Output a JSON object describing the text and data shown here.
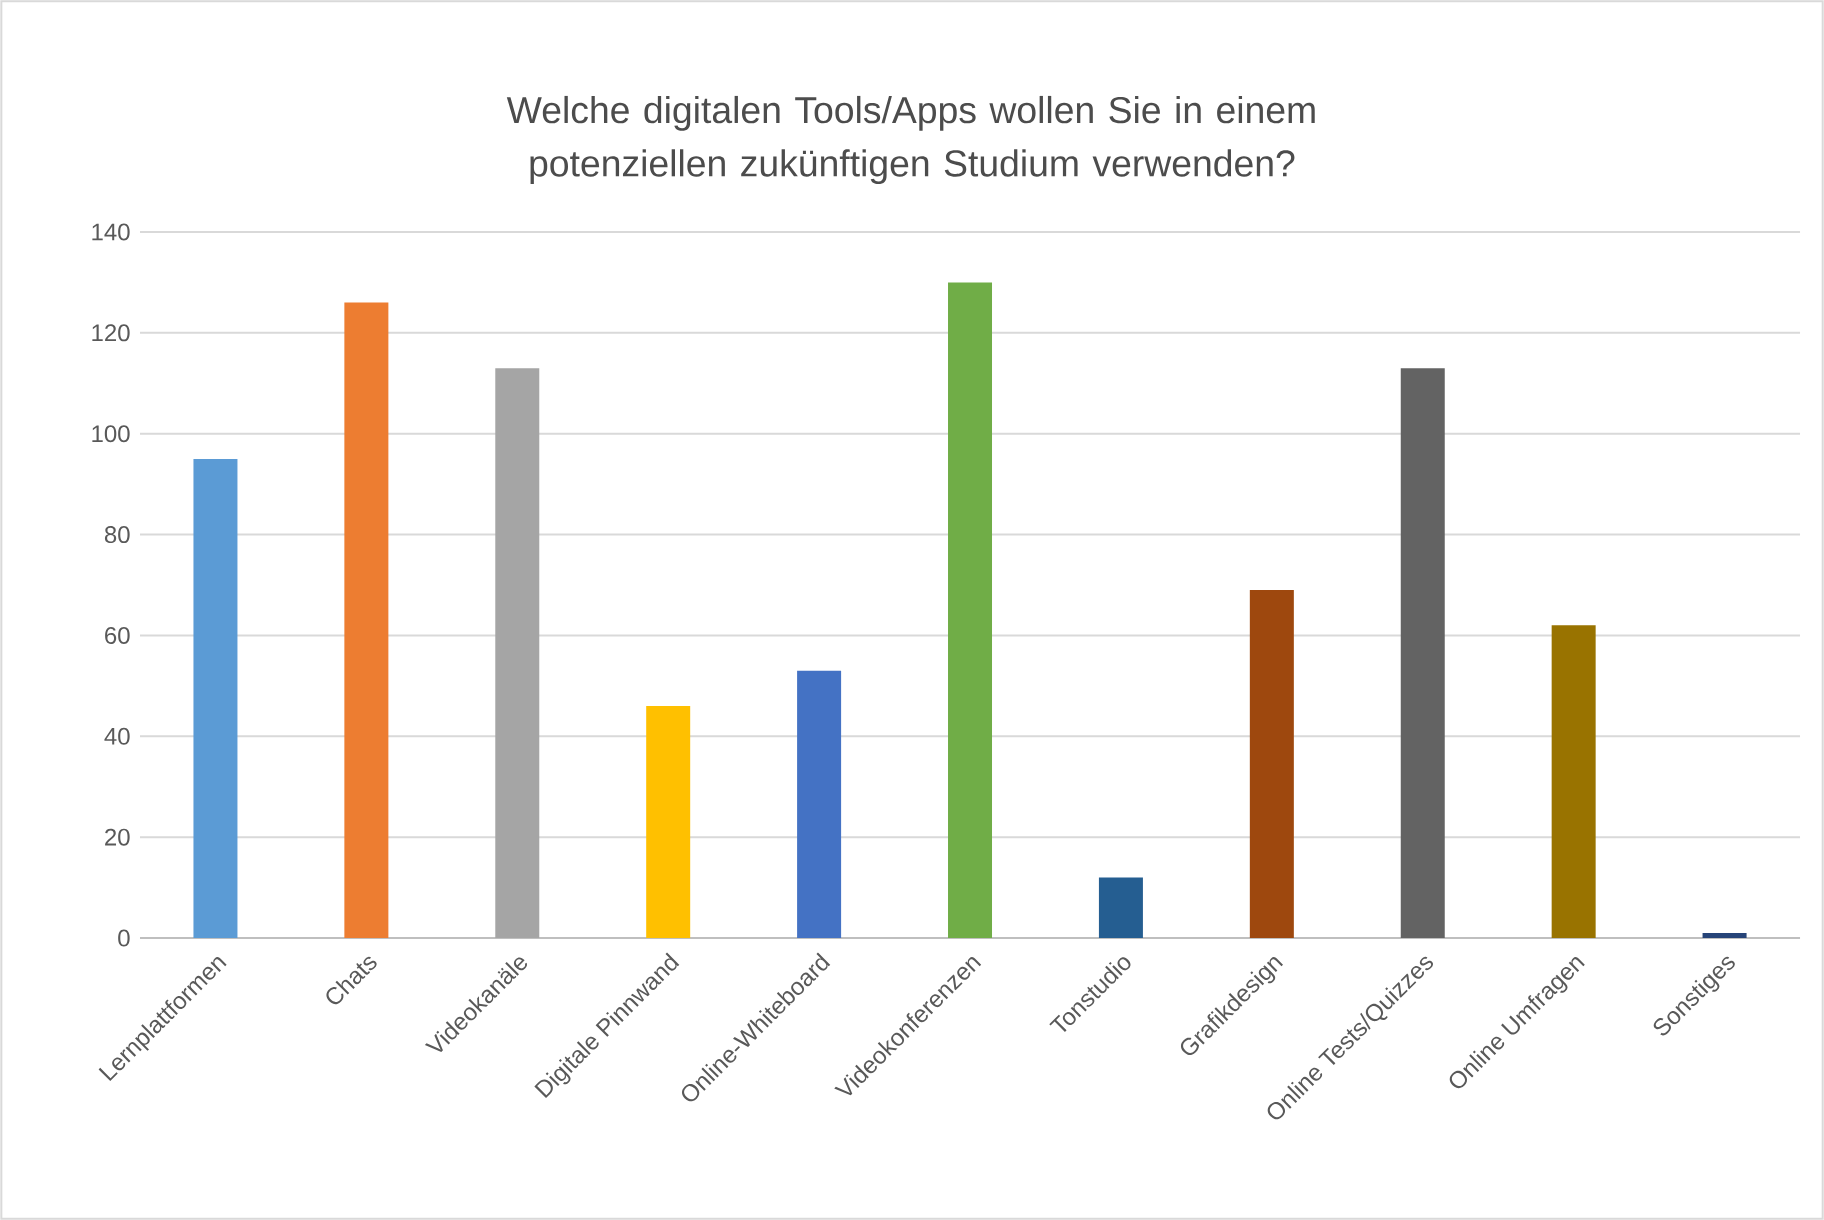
{
  "chart_data": {
    "type": "bar",
    "title": "Welche digitalen Tools/Apps wollen Sie in einem potenziellen zukünftigen Studium verwenden?",
    "categories": [
      "Lernplattformen",
      "Chats",
      "Videokanäle",
      "Digitale Pinnwand",
      "Online-Whiteboard",
      "Videokonferenzen",
      "Tonstudio",
      "Grafikdesign",
      "Online Tests/Quizzes",
      "Online Umfragen",
      "Sonstiges"
    ],
    "values": [
      95,
      126,
      113,
      46,
      53,
      130,
      12,
      69,
      113,
      62,
      1
    ],
    "colors": [
      "#5b9bd5",
      "#ed7d31",
      "#a5a5a5",
      "#ffc000",
      "#4472c4",
      "#70ad47",
      "#255e91",
      "#9e480e",
      "#636363",
      "#997300",
      "#264478"
    ],
    "ylim": [
      0,
      140
    ],
    "yticks": [
      0,
      20,
      40,
      60,
      80,
      100,
      120,
      140
    ],
    "grid": "y"
  }
}
